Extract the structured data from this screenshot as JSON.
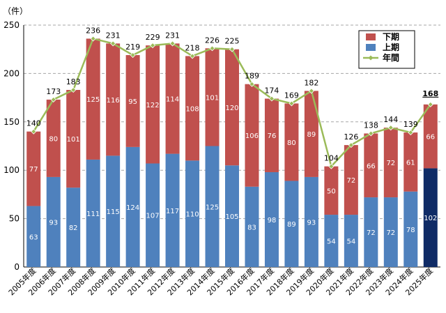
{
  "colors": {
    "upper": "#4f81bd",
    "lower": "#c0504d",
    "annual": "#9bbb59",
    "highlight": "#0f2b66",
    "grid": "#a6a6a6"
  },
  "chart_data": {
    "type": "bar",
    "stacked": true,
    "unit_label": "（件）",
    "categories": [
      "2005年度",
      "2006年度",
      "2007年度",
      "2008年度",
      "2009年度",
      "2010年度",
      "2011年度",
      "2012年度",
      "2013年度",
      "2014年度",
      "2015年度",
      "2016年度",
      "2017年度",
      "2018年度",
      "2019年度",
      "2020年度",
      "2021年度",
      "2022年度",
      "2023年度",
      "2024年度",
      "2025年度"
    ],
    "series": [
      {
        "name": "上期",
        "values": [
          63,
          93,
          82,
          111,
          115,
          124,
          107,
          117,
          110,
          125,
          105,
          83,
          98,
          89,
          93,
          54,
          54,
          72,
          72,
          78,
          102
        ]
      },
      {
        "name": "下期",
        "values": [
          77,
          80,
          101,
          125,
          116,
          95,
          122,
          114,
          108,
          101,
          120,
          106,
          76,
          80,
          89,
          50,
          72,
          66,
          72,
          61,
          66
        ]
      },
      {
        "name": "年間",
        "type": "line",
        "values": [
          140,
          173,
          183,
          236,
          231,
          219,
          229,
          231,
          218,
          226,
          225,
          189,
          174,
          169,
          182,
          104,
          126,
          138,
          144,
          139,
          168
        ]
      }
    ],
    "highlight_index": 20,
    "yticks": [
      0,
      50,
      100,
      150,
      200,
      250
    ],
    "ylim": [
      0,
      250
    ],
    "grid": true,
    "legend": {
      "position": "top-right",
      "entries": [
        "下期",
        "上期",
        "年間"
      ]
    }
  }
}
